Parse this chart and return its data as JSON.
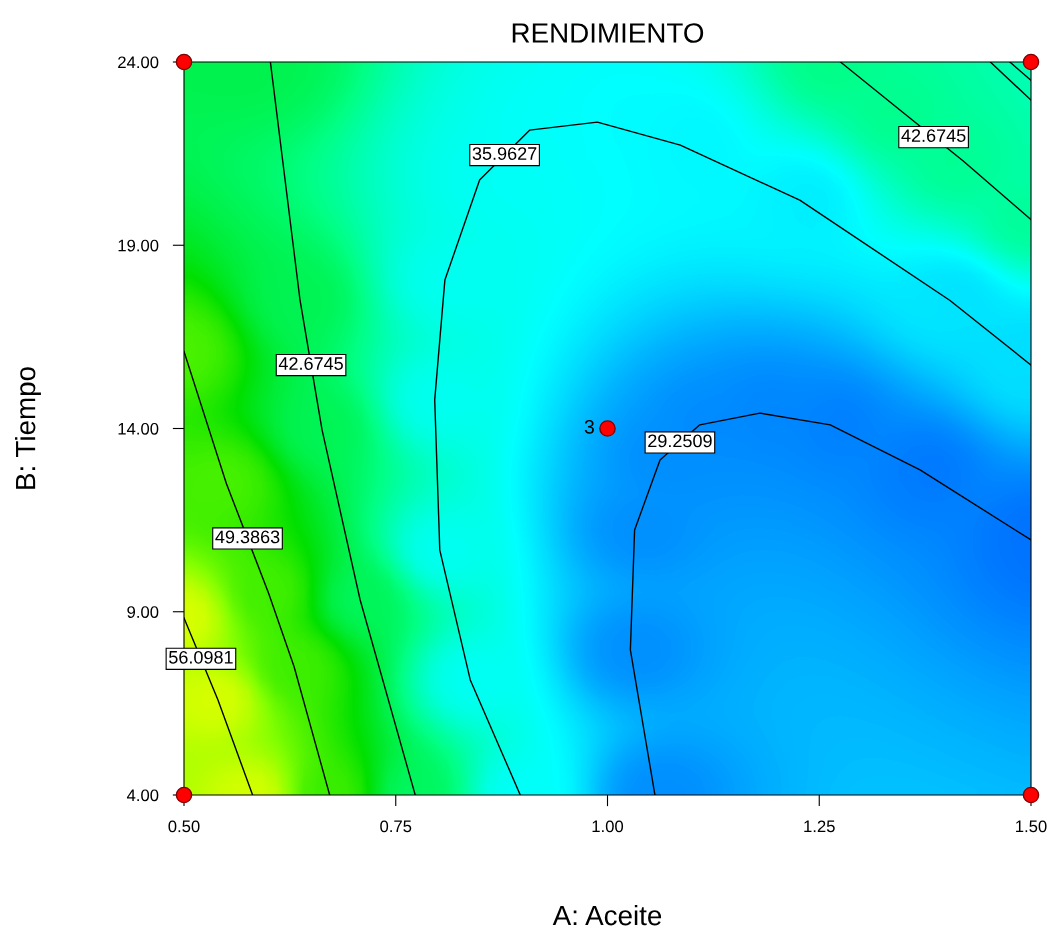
{
  "chart_data": {
    "type": "line",
    "title": "RENDIMIENTO",
    "xlabel": "A: Aceite",
    "ylabel": "B: Tiempo",
    "xlim": [
      0.5,
      1.5
    ],
    "ylim": [
      4,
      24
    ],
    "xticks": [
      {
        "value": 0.5,
        "label": "0.50"
      },
      {
        "value": 0.75,
        "label": "0.75"
      },
      {
        "value": 1.0,
        "label": "1.00"
      },
      {
        "value": 1.25,
        "label": "1.25"
      },
      {
        "value": 1.5,
        "label": "1.50"
      }
    ],
    "yticks": [
      {
        "value": 4,
        "label": "4.00"
      },
      {
        "value": 9,
        "label": "9.00"
      },
      {
        "value": 14,
        "label": "14.00"
      },
      {
        "value": 19,
        "label": "19.00"
      },
      {
        "value": 24,
        "label": "24.00"
      }
    ],
    "grid": false,
    "marker": "none",
    "line_style": "solid",
    "series": [
      {
        "name": "56.0981",
        "color": "#000000",
        "x": [
          0.5,
          0.54,
          0.581
        ],
        "values": [
          8.83,
          6.6,
          4
        ]
      },
      {
        "name": "49.3863",
        "color": "#000000",
        "x": [
          0.5,
          0.55,
          0.6,
          0.63,
          0.672
        ],
        "values": [
          16.1,
          12.5,
          9.5,
          7.5,
          4
        ]
      },
      {
        "name": "42.6745",
        "color": "#000000",
        "x": [
          0.602,
          0.637,
          0.663,
          0.708,
          0.773
        ],
        "values": [
          24,
          17.5,
          13.96,
          9.32,
          4
        ]
      },
      {
        "name": "35.9627",
        "color": "#000000",
        "x": [
          0.897,
          0.838,
          0.802,
          0.796,
          0.808,
          0.849,
          0.908,
          0.988,
          1.086,
          1.227,
          1.404,
          1.5
        ],
        "values": [
          4,
          7.14,
          10.68,
          14.78,
          18.05,
          20.78,
          22.14,
          22.36,
          21.73,
          20.23,
          17.5,
          15.73
        ]
      },
      {
        "name": "29.2509",
        "color": "#000000",
        "x": [
          1.056,
          1.027,
          1.032,
          1.062,
          1.109,
          1.18,
          1.263,
          1.369,
          1.5
        ],
        "values": [
          4,
          7.96,
          11.23,
          13.14,
          14.1,
          14.42,
          14.1,
          12.87,
          10.96
        ]
      },
      {
        "name": "42.6745",
        "color": "#000000",
        "x": [
          1.275,
          1.35,
          1.42,
          1.5
        ],
        "values": [
          24,
          22.6,
          21.3,
          19.7
        ]
      },
      {
        "color": "#000000",
        "x": [
          1.452,
          1.5
        ],
        "values": [
          24,
          22.96
        ]
      },
      {
        "color": "#000000",
        "x": [
          1.475,
          1.5
        ],
        "values": [
          24,
          23.5
        ]
      },
      {
        "type": "scatter",
        "color": "#ff0000",
        "marker": "circle",
        "x": [
          0.5,
          0.5,
          1.5,
          1.5,
          1.0
        ],
        "values": [
          4,
          24,
          24,
          4,
          14
        ]
      }
    ],
    "annotations": [
      {
        "text": "3",
        "x": 1.0,
        "y": 14
      }
    ]
  }
}
